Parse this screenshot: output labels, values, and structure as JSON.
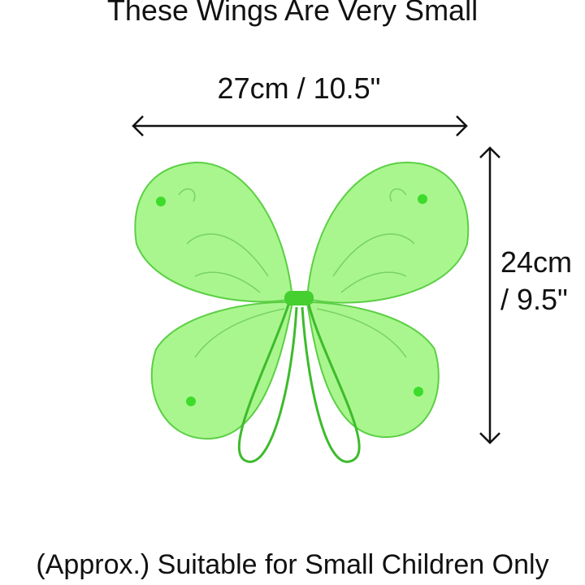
{
  "title": "These Wings Are Very Small",
  "width_label": "27cm / 10.5\"",
  "height_label_line1": "24cm",
  "height_label_line2": "/ 9.5\"",
  "footer": "(Approx.) Suitable for Small Children Only",
  "colors": {
    "wing": "#8ef06a",
    "wing_edge": "#4fc93a",
    "strap": "#3dbb2c"
  },
  "icons": [
    "width-arrow-icon",
    "height-arrow-icon"
  ]
}
